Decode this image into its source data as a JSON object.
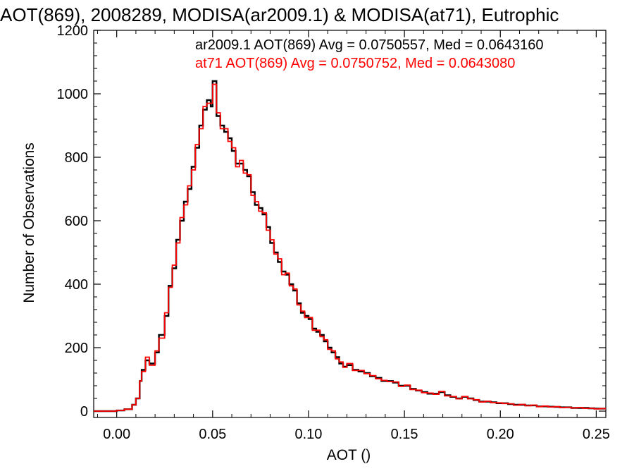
{
  "chart_data": {
    "type": "histogram",
    "title": "AOT(869), 2008289, MODISA(ar2009.1) & MODISA(at71), Eutrophic",
    "xlabel": "AOT ()",
    "ylabel": "Number of Observations",
    "xlim": [
      -0.012,
      0.255
    ],
    "ylim": [
      -20,
      1200
    ],
    "x_ticks": [
      "0.00",
      "0.05",
      "0.10",
      "0.15",
      "0.20",
      "0.25"
    ],
    "y_ticks": [
      "0",
      "200",
      "400",
      "600",
      "800",
      "1000",
      "1200"
    ],
    "grid": false,
    "bin_width": 0.00125,
    "annotations": [
      {
        "text": "ar2009.1 AOT(869) Avg = 0.0750557, Med = 0.0643160",
        "color": "#000000"
      },
      {
        "text": "at71 AOT(869) Avg = 0.0750752, Med = 0.0643080",
        "color": "#ff0000"
      }
    ],
    "series": [
      {
        "name": "ar2009.1",
        "color": "#000000",
        "x": [
          -0.012,
          -0.006,
          0.0,
          0.004,
          0.008,
          0.01,
          0.012,
          0.013,
          0.015,
          0.017,
          0.02,
          0.022,
          0.025,
          0.027,
          0.029,
          0.031,
          0.033,
          0.035,
          0.037,
          0.039,
          0.041,
          0.043,
          0.045,
          0.047,
          0.049,
          0.05,
          0.052,
          0.054,
          0.056,
          0.058,
          0.06,
          0.062,
          0.064,
          0.066,
          0.068,
          0.07,
          0.072,
          0.074,
          0.076,
          0.078,
          0.08,
          0.082,
          0.084,
          0.086,
          0.088,
          0.09,
          0.092,
          0.094,
          0.096,
          0.098,
          0.1,
          0.102,
          0.104,
          0.106,
          0.108,
          0.11,
          0.112,
          0.114,
          0.116,
          0.118,
          0.12,
          0.123,
          0.126,
          0.129,
          0.132,
          0.135,
          0.138,
          0.141,
          0.144,
          0.147,
          0.15,
          0.153,
          0.156,
          0.159,
          0.162,
          0.165,
          0.168,
          0.171,
          0.174,
          0.177,
          0.18,
          0.183,
          0.186,
          0.189,
          0.192,
          0.195,
          0.198,
          0.201,
          0.204,
          0.207,
          0.21,
          0.213,
          0.216,
          0.219,
          0.222,
          0.225,
          0.228,
          0.231,
          0.234,
          0.237,
          0.24,
          0.243,
          0.246,
          0.249,
          0.252,
          0.255
        ],
        "y": [
          0,
          0,
          2,
          6,
          20,
          40,
          95,
          130,
          160,
          150,
          185,
          240,
          300,
          395,
          450,
          540,
          600,
          660,
          700,
          770,
          830,
          900,
          950,
          980,
          960,
          1040,
          930,
          900,
          880,
          860,
          820,
          780,
          780,
          760,
          740,
          690,
          650,
          640,
          620,
          580,
          530,
          500,
          470,
          440,
          430,
          400,
          380,
          340,
          310,
          300,
          290,
          260,
          250,
          240,
          220,
          200,
          185,
          170,
          150,
          140,
          145,
          130,
          125,
          120,
          110,
          105,
          95,
          95,
          90,
          80,
          80,
          70,
          65,
          60,
          55,
          55,
          60,
          50,
          45,
          40,
          45,
          40,
          35,
          30,
          30,
          28,
          25,
          25,
          22,
          20,
          20,
          18,
          18,
          15,
          15,
          14,
          13,
          12,
          12,
          10,
          10,
          10,
          9,
          8,
          8,
          6
        ]
      },
      {
        "name": "at71",
        "color": "#ff0000",
        "x": [
          -0.012,
          -0.006,
          0.0,
          0.004,
          0.008,
          0.01,
          0.012,
          0.013,
          0.015,
          0.017,
          0.02,
          0.022,
          0.025,
          0.027,
          0.029,
          0.031,
          0.033,
          0.035,
          0.037,
          0.039,
          0.041,
          0.043,
          0.045,
          0.047,
          0.049,
          0.05,
          0.052,
          0.054,
          0.056,
          0.058,
          0.06,
          0.062,
          0.064,
          0.066,
          0.068,
          0.07,
          0.072,
          0.074,
          0.076,
          0.078,
          0.08,
          0.082,
          0.084,
          0.086,
          0.088,
          0.09,
          0.092,
          0.094,
          0.096,
          0.098,
          0.1,
          0.102,
          0.104,
          0.106,
          0.108,
          0.11,
          0.112,
          0.114,
          0.116,
          0.118,
          0.12,
          0.123,
          0.126,
          0.129,
          0.132,
          0.135,
          0.138,
          0.141,
          0.144,
          0.147,
          0.15,
          0.153,
          0.156,
          0.159,
          0.162,
          0.165,
          0.168,
          0.171,
          0.174,
          0.177,
          0.18,
          0.183,
          0.186,
          0.189,
          0.192,
          0.195,
          0.198,
          0.201,
          0.204,
          0.207,
          0.21,
          0.213,
          0.216,
          0.219,
          0.222,
          0.225,
          0.228,
          0.231,
          0.234,
          0.237,
          0.24,
          0.243,
          0.246,
          0.249,
          0.252,
          0.255
        ],
        "y": [
          0,
          0,
          2,
          6,
          20,
          40,
          95,
          125,
          170,
          145,
          190,
          230,
          310,
          390,
          460,
          530,
          610,
          650,
          710,
          760,
          840,
          890,
          960,
          970,
          970,
          1030,
          940,
          890,
          890,
          850,
          830,
          770,
          790,
          750,
          745,
          680,
          660,
          630,
          625,
          570,
          540,
          495,
          480,
          430,
          435,
          395,
          385,
          335,
          315,
          295,
          295,
          255,
          255,
          235,
          225,
          195,
          190,
          165,
          155,
          138,
          150,
          128,
          128,
          118,
          112,
          102,
          97,
          93,
          92,
          78,
          82,
          68,
          66,
          58,
          57,
          53,
          62,
          48,
          46,
          39,
          46,
          39,
          36,
          29,
          31,
          27,
          26,
          24,
          23,
          19,
          21,
          17,
          19,
          14,
          16,
          13,
          14,
          11,
          12,
          10,
          11,
          9,
          9,
          7,
          8,
          5
        ]
      }
    ]
  }
}
